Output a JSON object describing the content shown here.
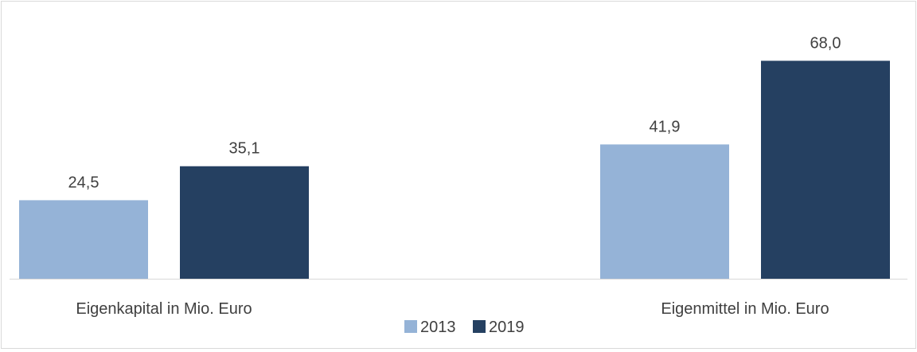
{
  "chart_data": {
    "type": "bar",
    "categories": [
      "Eigenkapital in Mio. Euro",
      "Eigenmittel in Mio. Euro"
    ],
    "series": [
      {
        "name": "2013",
        "values": [
          24.5,
          41.9
        ],
        "labels": [
          "24,5",
          "41,9"
        ],
        "color": "#95b3d7"
      },
      {
        "name": "2019",
        "values": [
          35.1,
          68.0
        ],
        "labels": [
          "35,1",
          "68,0"
        ],
        "color": "#254061"
      }
    ],
    "title": "",
    "xlabel": "",
    "ylabel": "",
    "ylim": [
      0,
      75
    ],
    "grid": false,
    "legend": "bottom",
    "axis_line_color": "#d9d9d9"
  }
}
